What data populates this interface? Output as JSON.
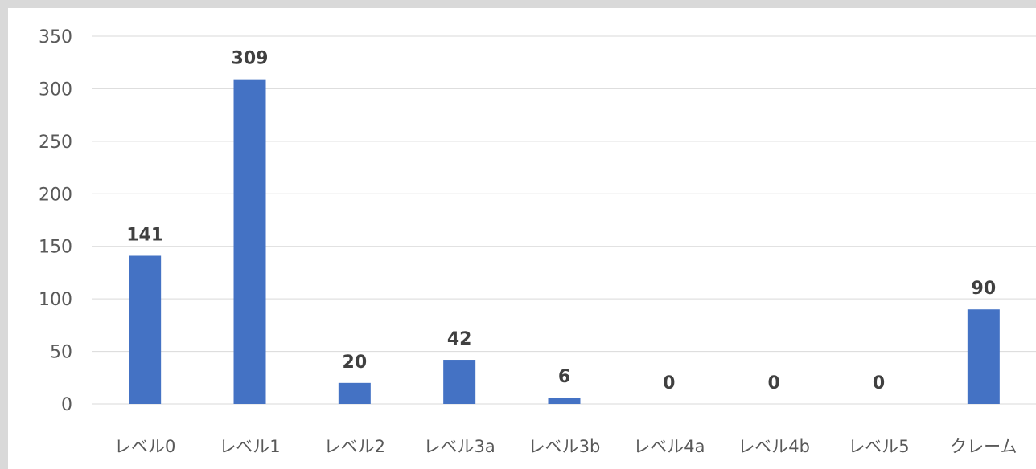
{
  "chart_data": {
    "type": "bar",
    "categories": [
      "レベル0",
      "レベル1",
      "レベル2",
      "レベル3a",
      "レベル3b",
      "レベル4a",
      "レベル4b",
      "レベル5",
      "クレーム"
    ],
    "values": [
      141,
      309,
      20,
      42,
      6,
      0,
      0,
      0,
      90
    ],
    "title": "",
    "xlabel": "",
    "ylabel": "",
    "ylim": [
      0,
      350
    ],
    "yticks": [
      0,
      50,
      100,
      150,
      200,
      250,
      300,
      350
    ],
    "grid": true,
    "legend": "none",
    "bar_color": "#4472C4",
    "grid_color": "#D9D9D9",
    "data_labels": true
  }
}
